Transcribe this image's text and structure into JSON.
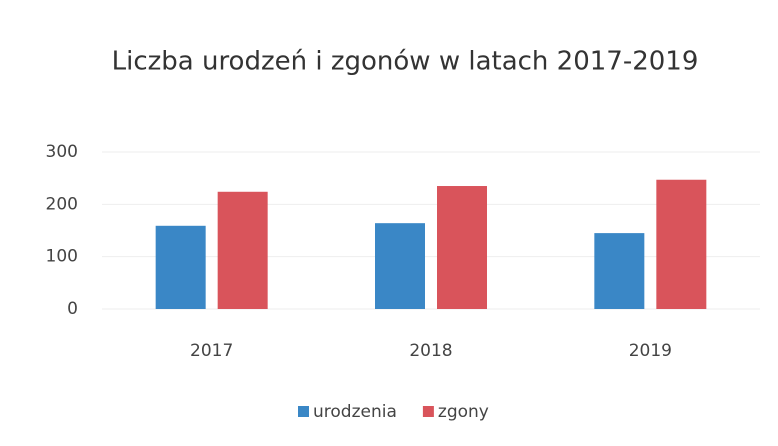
{
  "chart_data": {
    "type": "bar",
    "title": "Liczba urodzeń i zgonów w latach 2017-2019",
    "categories": [
      "2017",
      "2018",
      "2019"
    ],
    "series": [
      {
        "name": "urodzenia",
        "color": "#3a87c6",
        "values": [
          159,
          164,
          145
        ]
      },
      {
        "name": "zgony",
        "color": "#d9545b",
        "values": [
          224,
          235,
          247
        ]
      }
    ],
    "ylim": [
      0,
      300
    ],
    "yticks": [
      0,
      100,
      200,
      300
    ],
    "grid": true,
    "legend": "bottom"
  }
}
